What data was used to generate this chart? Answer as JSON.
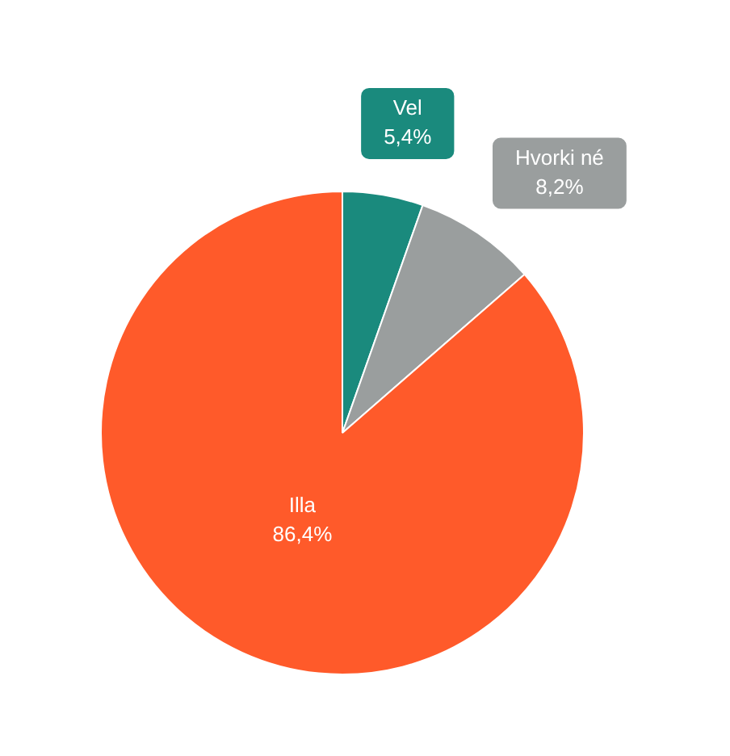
{
  "chart_data": {
    "type": "pie",
    "categories": [
      "Vel",
      "Hvorki né",
      "Illa"
    ],
    "values": [
      5.4,
      8.2,
      86.4
    ],
    "value_labels": [
      "5,4%",
      "8,2%",
      "86,4%"
    ],
    "colors": [
      "#1a8a7d",
      "#9a9e9e",
      "#ff5a2a"
    ],
    "legend": false
  }
}
